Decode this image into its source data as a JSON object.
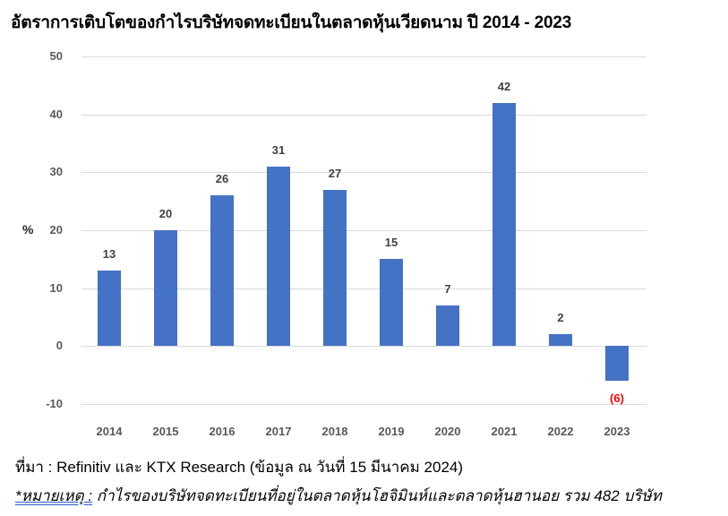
{
  "title": "อัตราการเติบโตของกำไรบริษัทจดทะเบียนในตลาดหุ้นเวียดนาม ปี 2014 - 2023",
  "source": "ที่มา : Refinitiv และ KTX Research (ข้อมูล ณ วันที่ 15 มีนาคม 2024)",
  "note": {
    "label": "*หมายเหตุ :",
    "text": " กำไรของบริษัทจดทะเบียนที่อยู่ในตลาดหุ้นโฮจิมินห์และตลาดหุ้นฮานอย รวม 482 บริษัท"
  },
  "colors": {
    "bar": "#4472c4",
    "negative_label": "#ff0000",
    "grid": "#d9d9d9"
  },
  "chart_data": {
    "type": "bar",
    "title": "อัตราการเติบโตของกำไรบริษัทจดทะเบียนในตลาดหุ้นเวียดนาม ปี 2014 - 2023",
    "xlabel": "",
    "ylabel": "%",
    "ylim": [
      -10,
      50
    ],
    "yticks": [
      "50",
      "40",
      "30",
      "20",
      "10",
      "0",
      "-10"
    ],
    "grid": true,
    "legend": "none",
    "categories": [
      "2014",
      "2015",
      "2016",
      "2017",
      "2018",
      "2019",
      "2020",
      "2021",
      "2022",
      "2023"
    ],
    "values": [
      13,
      20,
      26,
      31,
      27,
      15,
      7,
      42,
      2,
      -6
    ],
    "data_labels": [
      "13",
      "20",
      "26",
      "31",
      "27",
      "15",
      "7",
      "42",
      "2",
      "(6)"
    ]
  }
}
